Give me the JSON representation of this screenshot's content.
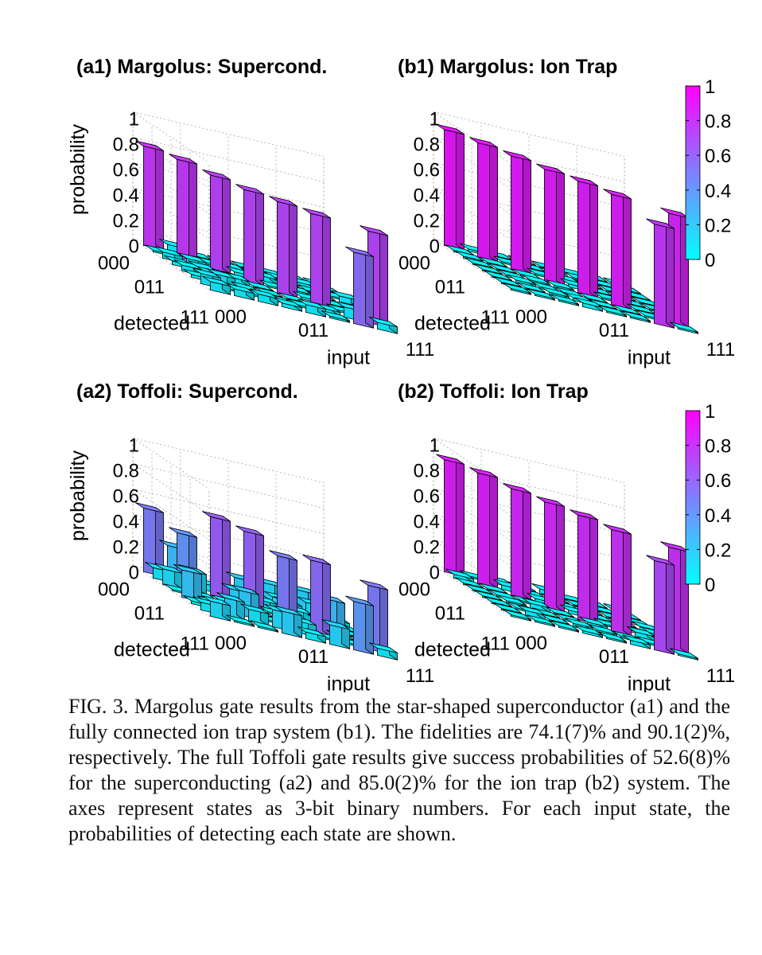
{
  "chart_data": [
    {
      "type": "bar3d",
      "title": "(a1) Margolus: Supercond.",
      "zlabel": "probability",
      "xlabel": "input",
      "ylabel": "detected",
      "zlim": [
        0,
        1
      ],
      "z_ticks": [
        "0",
        "0.2",
        "0.4",
        "0.6",
        "0.8",
        "1"
      ],
      "input_tick_labels": [
        "000",
        "011",
        "111"
      ],
      "detected_tick_labels": [
        "000",
        "011",
        "111"
      ],
      "diagonal_values": [
        0.78,
        0.77,
        0.74,
        0.72,
        0.72,
        0.72,
        0.56,
        0.72
      ],
      "diagonal_note": "last two input states swapped: input 110 -> detected 111, input 111 -> detected 110",
      "off_diagonal_typical": 0.05,
      "off_diagonal_range": [
        0.0,
        0.08
      ]
    },
    {
      "type": "bar3d",
      "title": "(b1) Margolus: Ion Trap",
      "zlabel": "",
      "xlabel": "input",
      "ylabel": "detected",
      "zlim": [
        0,
        1
      ],
      "z_ticks": [
        "0",
        "0.2",
        "0.4",
        "0.6",
        "0.8",
        "1"
      ],
      "input_tick_labels": [
        "000",
        "011",
        "111"
      ],
      "detected_tick_labels": [
        "000",
        "011",
        "111"
      ],
      "diagonal_values": [
        0.91,
        0.9,
        0.89,
        0.88,
        0.88,
        0.87,
        0.78,
        0.86
      ],
      "diagonal_note": "last two input states swapped",
      "off_diagonal_typical": 0.015,
      "off_diagonal_range": [
        0.0,
        0.03
      ],
      "colorbar": {
        "ticks": [
          "0",
          "0.2",
          "0.4",
          "0.6",
          "0.8",
          "1"
        ],
        "colors": [
          "#00ffff",
          "#ff00ff"
        ]
      }
    },
    {
      "type": "bar3d",
      "title": "(a2) Toffoli: Supercond.",
      "zlabel": "probability",
      "xlabel": "input",
      "ylabel": "detected",
      "zlim": [
        0,
        1
      ],
      "z_ticks": [
        "0",
        "0.2",
        "0.4",
        "0.6",
        "0.8",
        "1"
      ],
      "input_tick_labels": [
        "000",
        "011",
        "111"
      ],
      "detected_tick_labels": [
        "000",
        "011",
        "111"
      ],
      "diagonal_values": [
        0.5,
        0.4,
        0.62,
        0.6,
        0.5,
        0.56,
        0.38,
        0.5
      ],
      "diagonal_note": "last two input states swapped",
      "off_diagonal_typical": 0.06,
      "off_diagonal_range": [
        0.0,
        0.25
      ]
    },
    {
      "type": "bar3d",
      "title": "(b2) Toffoli: Ion Trap",
      "zlabel": "",
      "xlabel": "input",
      "ylabel": "detected",
      "zlim": [
        0,
        1
      ],
      "z_ticks": [
        "0",
        "0.2",
        "0.4",
        "0.6",
        "0.8",
        "1"
      ],
      "input_tick_labels": [
        "000",
        "011",
        "111"
      ],
      "detected_tick_labels": [
        "000",
        "011",
        "111"
      ],
      "diagonal_values": [
        0.88,
        0.87,
        0.84,
        0.83,
        0.82,
        0.8,
        0.7,
        0.8
      ],
      "diagonal_note": "last two input states swapped",
      "off_diagonal_typical": 0.015,
      "off_diagonal_range": [
        0.0,
        0.04
      ],
      "colorbar": {
        "ticks": [
          "0",
          "0.2",
          "0.4",
          "0.6",
          "0.8",
          "1"
        ],
        "colors": [
          "#00ffff",
          "#ff00ff"
        ]
      }
    }
  ],
  "caption": "FIG. 3.  Margolus gate results from the star-shaped superconductor (a1) and the fully connected ion trap system (b1). The fidelities are 74.1(7)% and 90.1(2)%, respectively. The full Toffoli gate results give success probabilities of 52.6(8)% for the superconducting (a2) and 85.0(2)% for the ion trap (b2) system. The axes represent states as 3-bit binary numbers. For each input state, the probabilities of detecting each state are shown."
}
